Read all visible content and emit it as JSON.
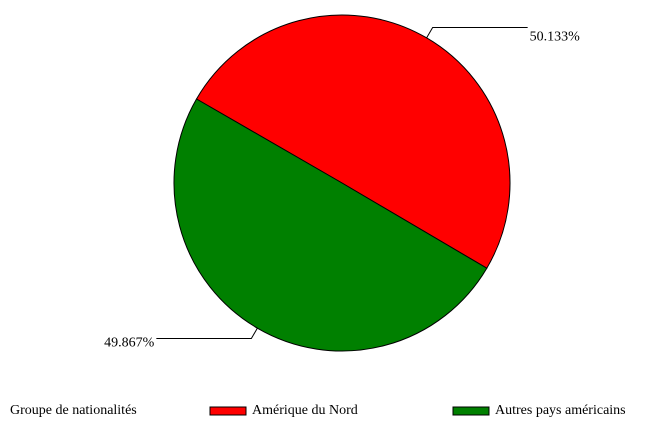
{
  "chart_data": {
    "type": "pie",
    "categories": [
      "Amérique du Nord",
      "Autres pays américains"
    ],
    "values": [
      50.133,
      49.867
    ],
    "value_labels": [
      "50.133%",
      "49.867%"
    ],
    "colors": [
      "#ff0000",
      "#008000"
    ],
    "legend_title": "Groupe de nationalités",
    "legend": "bottom"
  }
}
